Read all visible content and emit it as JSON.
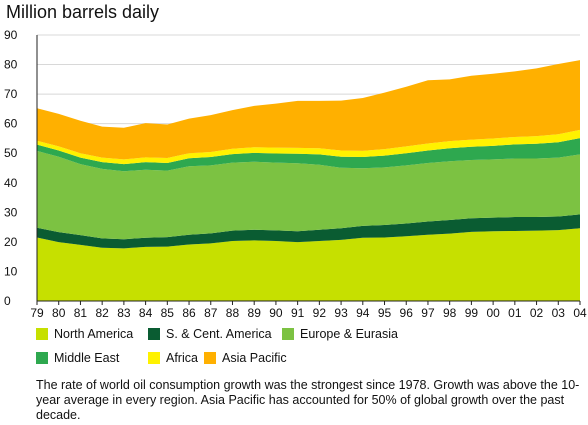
{
  "chart_data": {
    "type": "area",
    "stacked": true,
    "title": "Million barrels daily",
    "xlabel": "",
    "ylabel": "",
    "categories": [
      "79",
      "80",
      "81",
      "82",
      "83",
      "84",
      "85",
      "86",
      "87",
      "88",
      "89",
      "90",
      "91",
      "92",
      "93",
      "94",
      "95",
      "96",
      "97",
      "98",
      "99",
      "00",
      "01",
      "02",
      "03",
      "04"
    ],
    "y_ticks": [
      "0",
      "10",
      "20",
      "30",
      "40",
      "50",
      "60",
      "70",
      "80",
      "90"
    ],
    "ylim": [
      0,
      90
    ],
    "grid": true,
    "legend_position": "bottom",
    "series": [
      {
        "name": "North America",
        "color": "#c6e000",
        "values": [
          21.5,
          19.9,
          19.0,
          18.0,
          17.8,
          18.3,
          18.4,
          19.1,
          19.5,
          20.3,
          20.5,
          20.3,
          19.9,
          20.3,
          20.7,
          21.4,
          21.5,
          21.9,
          22.4,
          22.8,
          23.4,
          23.6,
          23.7,
          23.8,
          24.0,
          24.6
        ]
      },
      {
        "name": "S. & Cent. America",
        "color": "#0a5c32",
        "values": [
          3.3,
          3.4,
          3.3,
          3.2,
          3.1,
          3.1,
          3.2,
          3.3,
          3.4,
          3.5,
          3.6,
          3.6,
          3.7,
          3.8,
          3.9,
          4.0,
          4.2,
          4.3,
          4.5,
          4.6,
          4.6,
          4.6,
          4.7,
          4.6,
          4.6,
          4.7
        ]
      },
      {
        "name": "Europe & Eurasia",
        "color": "#7cc242",
        "values": [
          26.0,
          25.5,
          24.0,
          23.5,
          23.0,
          23.0,
          22.5,
          23.2,
          23.0,
          23.0,
          23.0,
          22.9,
          23.0,
          22.0,
          20.5,
          19.5,
          19.5,
          19.7,
          19.8,
          19.9,
          19.7,
          19.7,
          19.8,
          19.8,
          19.9,
          20.3
        ]
      },
      {
        "name": "Middle East",
        "color": "#2ea84f",
        "values": [
          2.1,
          2.1,
          2.2,
          2.3,
          2.4,
          2.6,
          2.6,
          2.7,
          2.8,
          2.9,
          3.0,
          3.1,
          3.2,
          3.5,
          3.7,
          3.8,
          4.0,
          4.1,
          4.2,
          4.4,
          4.5,
          4.6,
          4.8,
          5.0,
          5.2,
          5.5
        ]
      },
      {
        "name": "Africa",
        "color": "#fff200",
        "values": [
          1.3,
          1.4,
          1.5,
          1.5,
          1.6,
          1.6,
          1.7,
          1.7,
          1.7,
          1.8,
          1.9,
          2.0,
          2.0,
          2.1,
          2.1,
          2.1,
          2.2,
          2.3,
          2.4,
          2.4,
          2.4,
          2.5,
          2.5,
          2.6,
          2.7,
          2.8
        ]
      },
      {
        "name": "Asia Pacific",
        "color": "#ffb000",
        "values": [
          11.0,
          11.0,
          11.0,
          10.5,
          10.7,
          11.6,
          11.3,
          11.7,
          12.5,
          13.1,
          14.0,
          14.9,
          15.9,
          16.0,
          16.9,
          17.9,
          19.1,
          20.2,
          21.4,
          20.9,
          21.6,
          21.9,
          22.2,
          22.9,
          23.8,
          23.6
        ]
      }
    ]
  },
  "caption": "The rate of world oil consumption growth was the strongest since 1978. Growth was above the 10-year average in every region. Asia Pacific has accounted for 50% of global growth over the past decade."
}
